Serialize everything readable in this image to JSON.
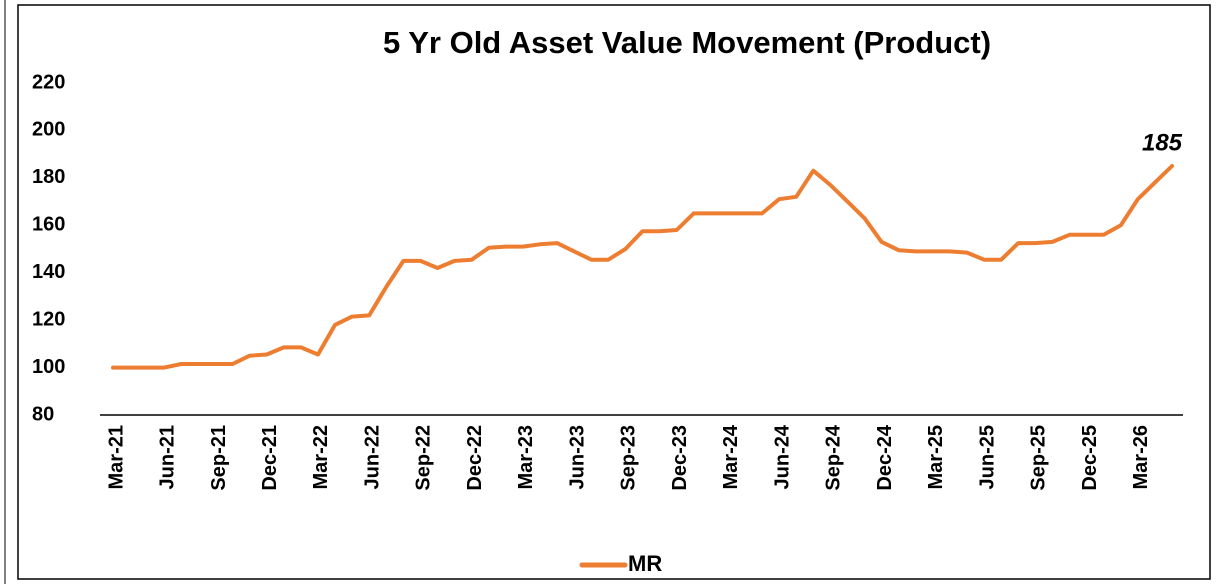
{
  "chart_data": {
    "type": "line",
    "title": "5 Yr Old Asset Value Movement (Product)",
    "categories": [
      "Mar-21",
      null,
      null,
      "Jun-21",
      null,
      null,
      "Sep-21",
      null,
      null,
      "Dec-21",
      null,
      null,
      "Mar-22",
      null,
      null,
      "Jun-22",
      null,
      null,
      "Sep-22",
      null,
      null,
      "Dec-22",
      null,
      null,
      "Mar-23",
      null,
      null,
      "Jun-23",
      null,
      null,
      "Sep-23",
      null,
      null,
      "Dec-23",
      null,
      null,
      "Mar-24",
      null,
      null,
      "Jun-24",
      null,
      null,
      "Sep-24",
      null,
      null,
      "Dec-24",
      null,
      null,
      "Mar-25",
      null,
      null,
      "Jun-25",
      null,
      null,
      "Sep-25",
      null,
      null,
      "Dec-25",
      null,
      null,
      "Mar-26",
      null,
      null
    ],
    "series": [
      {
        "name": "MR",
        "color": "#ed7d31",
        "values": [
          100,
          100,
          100,
          100,
          101.5,
          101.5,
          101.5,
          101.5,
          105,
          105.5,
          108.5,
          108.5,
          105.5,
          118,
          121.5,
          122,
          134,
          145,
          145,
          142,
          145,
          145.5,
          150.5,
          151,
          151,
          152,
          152.5,
          149,
          145.5,
          145.5,
          150,
          157.5,
          157.5,
          158,
          165,
          165,
          165,
          165,
          165,
          171,
          172,
          183,
          177,
          170,
          163,
          153,
          149.5,
          149,
          149,
          149,
          148.5,
          145.5,
          145.5,
          152.5,
          152.5,
          153,
          156,
          156,
          156,
          160,
          171,
          178,
          185
        ]
      }
    ],
    "ylim": [
      80,
      220
    ],
    "yticks": [
      80,
      100,
      120,
      140,
      160,
      180,
      200,
      220
    ],
    "grid": false,
    "legend": "bottom",
    "annotated_point": 62
  }
}
